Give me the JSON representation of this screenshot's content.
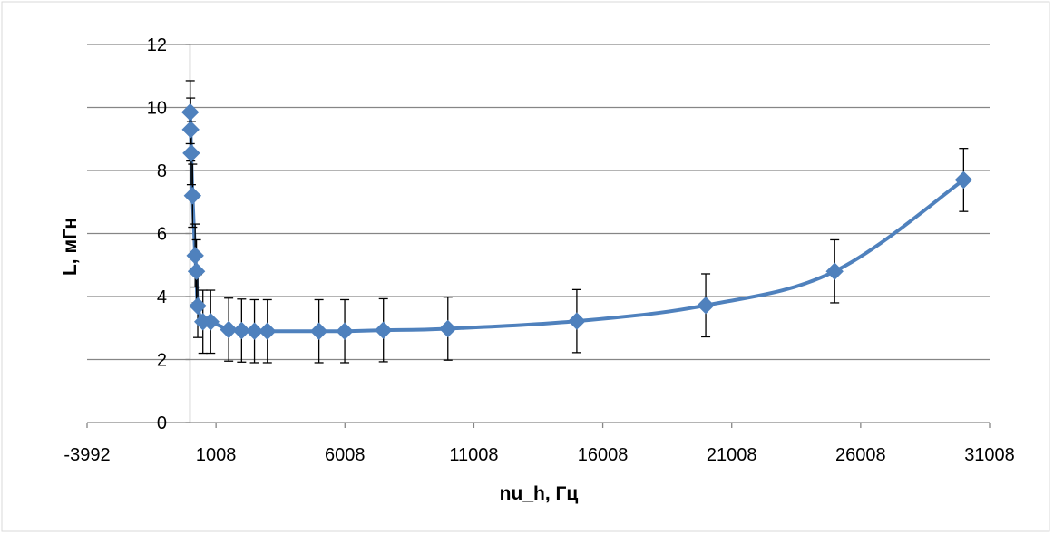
{
  "chart_data": {
    "type": "scatter",
    "title": "",
    "xlabel": "nu_h, Гц",
    "ylabel": "L, мГн",
    "xlim": [
      -3992,
      31008
    ],
    "ylim": [
      0,
      12
    ],
    "x_ticks": [
      "-3992",
      "1008",
      "6008",
      "11008",
      "16008",
      "21008",
      "26008",
      "31008"
    ],
    "y_ticks": [
      "0",
      "2",
      "4",
      "6",
      "8",
      "10",
      "12"
    ],
    "grid": "horizontal",
    "legend": "none",
    "series": [
      {
        "x": [
          8,
          25,
          50,
          100,
          200,
          250,
          300,
          500,
          800,
          1500,
          2000,
          2500,
          3000,
          5000,
          6000,
          7500,
          10000,
          15000,
          20000,
          25000,
          30000
        ],
        "y": [
          9.85,
          9.3,
          8.55,
          7.2,
          5.3,
          4.8,
          3.7,
          3.2,
          3.2,
          2.95,
          2.92,
          2.9,
          2.9,
          2.9,
          2.9,
          2.93,
          2.98,
          3.22,
          3.72,
          4.8,
          7.7
        ],
        "error": [
          1.0,
          1.0,
          1.0,
          1.0,
          1.0,
          1.0,
          1.0,
          1.0,
          1.0,
          1.0,
          1.0,
          1.0,
          1.0,
          1.0,
          1.0,
          1.0,
          1.0,
          1.0,
          1.0,
          1.0,
          1.0
        ],
        "marker": "diamond",
        "smooth_line": true
      }
    ],
    "colors": {
      "series": "#4f81bd",
      "grid": "#868686",
      "axis": "#868686",
      "error_bar": "#000000",
      "frame": "#d9d9d9"
    }
  }
}
